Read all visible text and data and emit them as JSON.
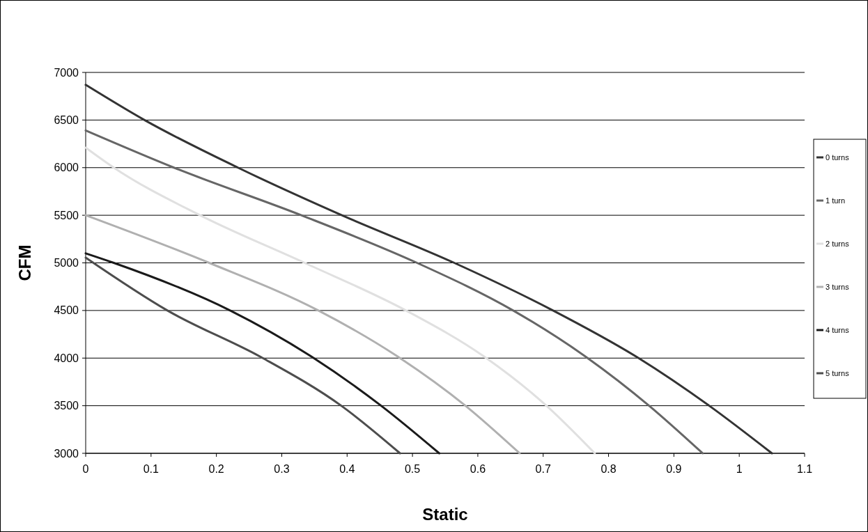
{
  "chart_data": {
    "type": "line",
    "xlabel": "Static",
    "ylabel": "CFM",
    "xlim": [
      0,
      1.1
    ],
    "xticks": [
      0,
      0.1,
      0.2,
      0.3,
      0.4,
      0.5,
      0.6,
      0.7,
      0.8,
      0.9,
      1,
      1.1
    ],
    "ylim": [
      3000,
      7000
    ],
    "yticks": [
      3000,
      3500,
      4000,
      4500,
      5000,
      5500,
      6000,
      6500,
      7000
    ],
    "grid": "y",
    "legend": "right",
    "marker": "none",
    "line_style": "solid",
    "series": [
      {
        "name": "0 turns",
        "color": "#333333",
        "x": [
          0,
          0.09,
          0.233,
          0.392,
          0.564,
          0.715,
          0.846,
          0.954,
          1.05
        ],
        "values": [
          6870,
          6500,
          6000,
          5500,
          5000,
          4500,
          4000,
          3500,
          3000
        ]
      },
      {
        "name": "1 turn",
        "color": "#666666",
        "x": [
          0,
          0.135,
          0.33,
          0.507,
          0.654,
          0.768,
          0.862,
          0.944
        ],
        "values": [
          6390,
          6000,
          5500,
          5000,
          4500,
          4000,
          3500,
          3000
        ]
      },
      {
        "name": "2 turns",
        "color": "#e0e0e0",
        "x": [
          0,
          0.043,
          0.175,
          0.335,
          0.49,
          0.613,
          0.705,
          0.779
        ],
        "values": [
          6210,
          6000,
          5500,
          5000,
          4500,
          4000,
          3500,
          3000
        ]
      },
      {
        "name": "3 turns",
        "color": "#b0b0b0",
        "x": [
          0,
          0.189,
          0.356,
          0.481,
          0.581,
          0.664
        ],
        "values": [
          5500,
          5000,
          4500,
          4000,
          3500,
          3000
        ]
      },
      {
        "name": "4 turns",
        "color": "#1a1a1a",
        "x": [
          0,
          0.043,
          0.221,
          0.349,
          0.452,
          0.541
        ],
        "values": [
          5100,
          5000,
          4500,
          4000,
          3500,
          3000
        ]
      },
      {
        "name": "5 turns",
        "color": "#4d4d4d",
        "x": [
          0,
          0.125,
          0.271,
          0.391,
          0.481
        ],
        "values": [
          5055,
          4500,
          4000,
          3500,
          3000
        ]
      }
    ]
  }
}
